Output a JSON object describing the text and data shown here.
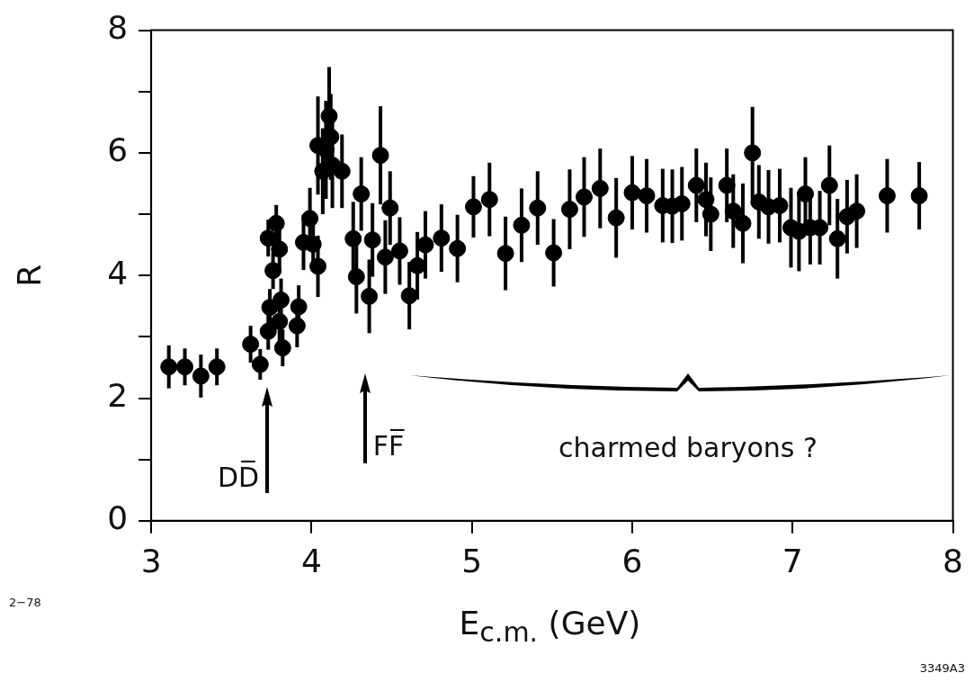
{
  "chart_data": {
    "type": "scatter",
    "xlabel": "E$_{c.m.}$  (GeV)",
    "ylabel": "R",
    "marker": "circle",
    "xlim": [
      3,
      8
    ],
    "xticks": [
      3,
      4,
      5,
      6,
      7,
      8
    ],
    "ylim": [
      0,
      8
    ],
    "yticks": [
      0,
      {
        "value": 1,
        "label": null
      },
      2,
      {
        "value": 3,
        "label": null
      },
      4,
      {
        "value": 5,
        "label": null
      },
      6,
      {
        "value": 7,
        "label": null
      },
      8
    ],
    "series": [
      {
        "color": "#000000",
        "x": [
          3.11,
          3.21,
          3.31,
          3.41,
          3.62,
          3.68,
          3.73,
          3.73,
          3.74,
          3.76,
          3.78,
          3.8,
          3.8,
          3.81,
          3.82,
          3.91,
          3.92,
          3.95,
          3.99,
          4.01,
          4.04,
          4.04,
          4.07,
          4.09,
          4.11,
          4.12,
          4.13,
          4.19,
          4.26,
          4.28,
          4.31,
          4.36,
          4.38,
          4.43,
          4.46,
          4.49,
          4.55,
          4.61,
          4.66,
          4.71,
          4.81,
          4.91,
          5.01,
          5.11,
          5.21,
          5.31,
          5.41,
          5.51,
          5.61,
          5.7,
          5.8,
          5.9,
          6.0,
          6.09,
          6.19,
          6.25,
          6.31,
          6.4,
          6.46,
          6.49,
          6.59,
          6.63,
          6.69,
          6.75,
          6.79,
          6.85,
          6.92,
          6.99,
          7.04,
          7.08,
          7.11,
          7.17,
          7.23,
          7.28,
          7.34,
          7.4,
          7.59,
          7.79
        ],
        "values": [
          2.51,
          2.51,
          2.36,
          2.51,
          2.88,
          2.55,
          3.09,
          4.61,
          3.48,
          4.08,
          4.85,
          4.43,
          3.25,
          3.6,
          2.82,
          3.18,
          3.49,
          4.54,
          4.93,
          4.51,
          4.15,
          6.12,
          5.7,
          6.05,
          6.6,
          6.26,
          5.8,
          5.7,
          4.6,
          3.98,
          5.33,
          3.66,
          4.58,
          5.96,
          4.3,
          5.1,
          4.4,
          3.67,
          4.16,
          4.5,
          4.61,
          4.44,
          5.12,
          5.24,
          4.36,
          4.82,
          5.1,
          4.37,
          5.08,
          5.28,
          5.42,
          4.94,
          5.35,
          5.3,
          5.14,
          5.13,
          5.17,
          5.47,
          5.24,
          5.0,
          5.47,
          5.05,
          4.85,
          6.0,
          5.2,
          5.12,
          5.14,
          4.78,
          4.72,
          5.33,
          4.78,
          4.78,
          5.47,
          4.6,
          4.96,
          5.05,
          5.3,
          5.3
        ],
        "errors": [
          0.35,
          0.3,
          0.35,
          0.3,
          0.3,
          0.25,
          0.3,
          0.3,
          0.3,
          0.3,
          0.3,
          0.35,
          0.35,
          0.35,
          0.3,
          0.35,
          0.35,
          0.45,
          0.5,
          0.45,
          0.5,
          0.8,
          0.7,
          0.8,
          0.8,
          0.7,
          0.7,
          0.6,
          0.6,
          0.6,
          0.6,
          0.6,
          0.6,
          0.8,
          0.6,
          0.6,
          0.55,
          0.55,
          0.55,
          0.55,
          0.55,
          0.55,
          0.5,
          0.6,
          0.6,
          0.6,
          0.6,
          0.55,
          0.65,
          0.65,
          0.65,
          0.65,
          0.6,
          0.6,
          0.6,
          0.6,
          0.6,
          0.6,
          0.6,
          0.6,
          0.6,
          0.6,
          0.65,
          0.75,
          0.6,
          0.6,
          0.6,
          0.65,
          0.65,
          0.6,
          0.6,
          0.6,
          0.65,
          0.65,
          0.6,
          0.6,
          0.6,
          0.55
        ]
      }
    ],
    "annotations": [
      "DD̅",
      "FF̅",
      "charmed baryons ?",
      "2−78",
      "3349A3"
    ]
  }
}
